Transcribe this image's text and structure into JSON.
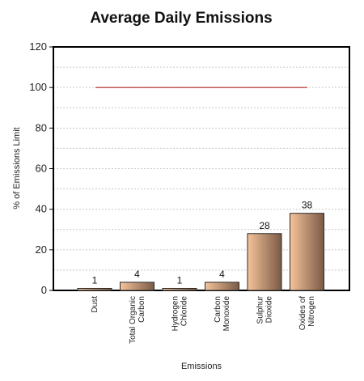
{
  "chart_data": {
    "type": "bar",
    "title": "Average Daily Emissions",
    "xlabel": "Emissions",
    "ylabel": "% of Emissions Limit",
    "ylim": [
      0,
      120
    ],
    "yticks": [
      0,
      20,
      40,
      60,
      80,
      100,
      120
    ],
    "grid": true,
    "categories": [
      [
        "Dust"
      ],
      [
        "Total Organic",
        "Carbon"
      ],
      [
        "Hydrogen",
        "Chloride"
      ],
      [
        "Carbon",
        "Monoxide"
      ],
      [
        "Sulphur",
        "Dioxide"
      ],
      [
        "Oxides of",
        "Nitrogen"
      ]
    ],
    "values": [
      1,
      4,
      1,
      4,
      28,
      38
    ],
    "data_labels": [
      "1",
      "4",
      "1",
      "4",
      "28",
      "38"
    ],
    "limit_line": {
      "value": 100,
      "color": "#b22222"
    },
    "colors": {
      "bar_light": "#f5c39a",
      "bar_dark": "#7a5a46",
      "grid": "#c8c8c8"
    }
  }
}
